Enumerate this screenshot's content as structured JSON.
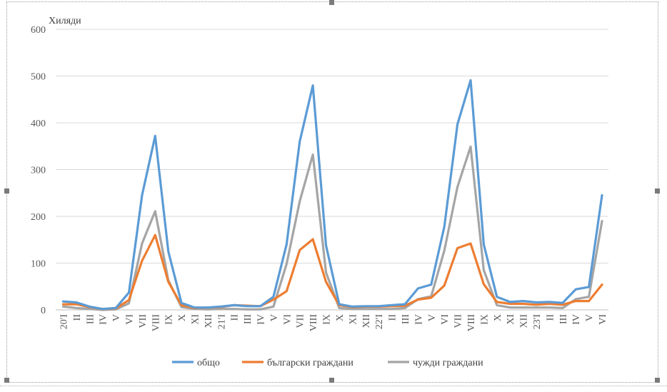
{
  "chart_data": {
    "type": "line",
    "ylabel": "Хиляди",
    "ylim": [
      0,
      600
    ],
    "yticks": [
      0,
      100,
      200,
      300,
      400,
      500,
      600
    ],
    "grid": "horizontal",
    "legend_position": "bottom",
    "categories": [
      "20'I",
      "II",
      "III",
      "IV",
      "V",
      "VI",
      "VII",
      "VIII",
      "IX",
      "X",
      "XI",
      "XII",
      "21'I",
      "II",
      "III",
      "IV",
      "V",
      "VI",
      "VII",
      "VIII",
      "IX",
      "X",
      "XI",
      "XII",
      "22'I",
      "II",
      "III",
      "IV",
      "V",
      "VI",
      "VII",
      "VIII",
      "IX",
      "X",
      "XI",
      "XII",
      "23'I",
      "II",
      "III",
      "IV",
      "V",
      "VI"
    ],
    "series": [
      {
        "name": "общо",
        "color": "#5b9bd5",
        "values": [
          18,
          16,
          7,
          2,
          4,
          37,
          245,
          372,
          125,
          15,
          5,
          5,
          7,
          10,
          8,
          8,
          28,
          140,
          360,
          480,
          138,
          12,
          7,
          8,
          8,
          10,
          12,
          46,
          54,
          178,
          397,
          491,
          140,
          28,
          17,
          19,
          16,
          17,
          15,
          44,
          49,
          245
        ]
      },
      {
        "name": "български граждани",
        "color": "#ed7d31",
        "values": [
          12,
          12,
          6,
          2,
          3,
          21,
          105,
          160,
          60,
          10,
          4,
          5,
          6,
          10,
          9,
          8,
          22,
          40,
          128,
          151,
          60,
          10,
          6,
          7,
          7,
          8,
          9,
          22,
          26,
          52,
          132,
          142,
          55,
          17,
          13,
          13,
          11,
          13,
          11,
          19,
          19,
          54
        ]
      },
      {
        "name": "чужди граждани",
        "color": "#a5a5a5",
        "values": [
          7,
          4,
          2,
          0,
          1,
          14,
          142,
          211,
          63,
          6,
          2,
          1,
          2,
          2,
          1,
          1,
          7,
          98,
          232,
          332,
          80,
          4,
          2,
          2,
          2,
          2,
          4,
          23,
          29,
          127,
          263,
          349,
          85,
          10,
          5,
          5,
          5,
          5,
          4,
          23,
          28,
          190
        ]
      }
    ]
  }
}
